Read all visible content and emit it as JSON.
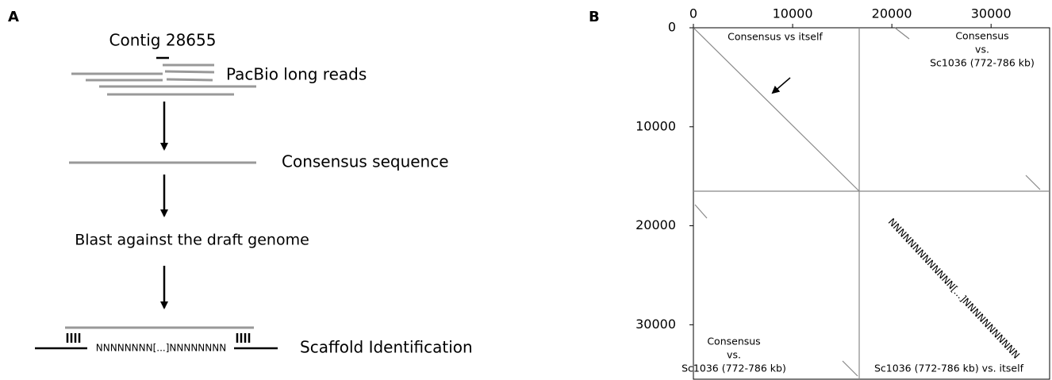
{
  "panel_a": {
    "label": "A",
    "contig": "Contig 28655",
    "reads": "PacBio long reads",
    "consensus": "Consensus sequence",
    "blast": "Blast against the draft genome",
    "gap": "NNNNNNNN[...]NNNNNNNN",
    "scaffold": "Scaffold Identification"
  },
  "panel_b": {
    "label": "B",
    "xlim": [
      0,
      35900
    ],
    "ylim": [
      0,
      35500
    ],
    "xticks": [
      0,
      10000,
      20000,
      30000
    ],
    "yticks": [
      0,
      10000,
      20000,
      30000
    ],
    "top_left": "Consensus vs itself",
    "top_right": [
      "Consensus",
      "vs.",
      "Sc1036 (772-786 kb)"
    ],
    "bottom_left": [
      "Consensus",
      "vs.",
      "Sc1036 (772-786 kb)"
    ],
    "bottom_right": "Sc1036 (772-786 kb) vs. itself",
    "diagonal": "NNNNNNNNNNNNN[...]NNNNNNNNNNN"
  }
}
